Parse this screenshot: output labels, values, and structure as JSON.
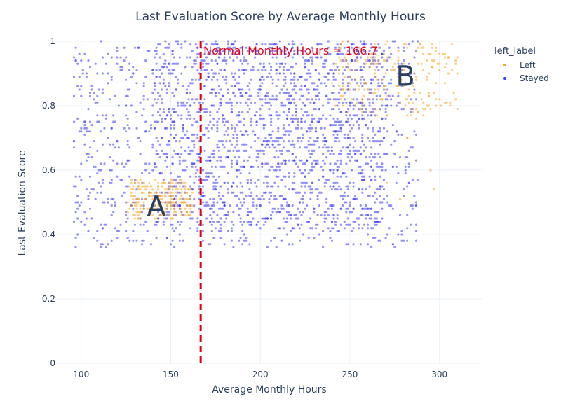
{
  "colors": {
    "left": "#f5a623",
    "stayed": "#3b3bf5",
    "ref_line": "#e3000f",
    "grid": "#ebf0f8",
    "text": "#2a3f5f"
  },
  "chart_data": {
    "type": "scatter",
    "title": "Last Evaluation Score by Average Monthly Hours",
    "xlabel": "Average Monthly Hours",
    "ylabel": "Last Evaluation Score",
    "xlim": [
      86,
      324
    ],
    "ylim": [
      0,
      1
    ],
    "x_ticks": [
      "100",
      "150",
      "200",
      "250",
      "300"
    ],
    "y_ticks": [
      "0",
      "0.2",
      "0.4",
      "0.6",
      "0.8",
      "1"
    ],
    "grid": true,
    "legend": {
      "title": "left_label",
      "position": "top-right",
      "entries": [
        "Left",
        "Stayed"
      ]
    },
    "reference_line": {
      "axis": "x",
      "value": 166.7,
      "style": "dashed",
      "label": "Normal Monthly Hours = 166.7"
    },
    "annotations": [
      {
        "text": "A",
        "x": 142,
        "y": 0.49
      },
      {
        "text": "B",
        "x": 281,
        "y": 0.895
      }
    ],
    "series": [
      {
        "name": "Stayed",
        "color_key": "stayed",
        "clusters": [
          {
            "x_range": [
              96,
              288
            ],
            "y_range": [
              0.36,
              1.0
            ],
            "count": 1300
          },
          {
            "x_range": [
              140,
              270
            ],
            "y_range": [
              0.42,
              1.0
            ],
            "count": 1300
          }
        ]
      },
      {
        "name": "Left",
        "color_key": "left",
        "clusters": [
          {
            "x_range": [
              126,
              162
            ],
            "y_range": [
              0.45,
              0.57
            ],
            "count": 230
          },
          {
            "x_range": [
              240,
              310
            ],
            "y_range": [
              0.77,
              1.0
            ],
            "count": 220
          },
          {
            "x_range": [
              268,
              310
            ],
            "y_range": [
              0.48,
              0.77
            ],
            "count": 8
          }
        ]
      }
    ]
  }
}
